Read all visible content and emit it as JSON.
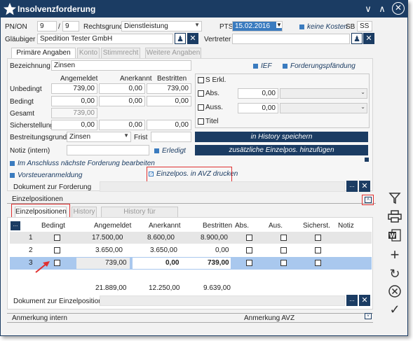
{
  "window": {
    "title": "Insolvenzforderung"
  },
  "header": {
    "pnon_label": "PN/ON",
    "pn_value": "9",
    "slash": "/",
    "on_value": "9",
    "rechtsgrund_label": "Rechtsgrund",
    "rechtsgrund_value": "Dienstleistung",
    "pts_label": "PTS",
    "pts_value": "15.02.2016",
    "keine_kosten": "keine Kosten",
    "sb_label": "SB",
    "sb_value": "SS",
    "glaeubiger_label": "Gläubiger",
    "glaeubiger_value": "Spedition Tester GmbH",
    "vertreter_label": "Vertreter",
    "vertreter_value": ""
  },
  "tabs": [
    "Primäre Angaben",
    "Konto",
    "Stimmrecht",
    "Weitere Angaben"
  ],
  "form": {
    "bezeichnung_label": "Bezeichnung",
    "bezeichnung_value": "Zinsen",
    "ief": "IEF",
    "forderungspfaendung": "Forderungspfändung",
    "col_angemeldet": "Angemeldet",
    "col_anerkannt": "Anerkannt",
    "col_bestritten": "Bestritten",
    "rows": [
      {
        "label": "Unbedingt",
        "angemeldet": "739,00",
        "anerkannt": "0,00",
        "bestritten": "739,00"
      },
      {
        "label": "Bedingt",
        "angemeldet": "0,00",
        "anerkannt": "0,00",
        "bestritten": "0,00"
      },
      {
        "label": "Gesamt",
        "angemeldet": "739,00",
        "anerkannt": "",
        "bestritten": ""
      },
      {
        "label": "Sicherstellung",
        "angemeldet": "0,00",
        "anerkannt": "0,00",
        "bestritten": "0,00"
      }
    ],
    "s_erkl": "S Erkl.",
    "abs": "Abs.",
    "abs_value": "0,00",
    "auss": "Auss.",
    "auss_value": "0,00",
    "titel": "Titel",
    "bestreitungsgrund_label": "Bestreitungsgrund",
    "bestreitungsgrund_value": "Zinsen",
    "frist_label": "Frist",
    "history_btn": "in History speichern",
    "notiz_label": "Notiz (intern)",
    "erledigt": "Erledigt",
    "zusaetzlich_btn": "zusätzliche Einzelpos. hinzufügen",
    "im_anschluss": "Im Anschluss nächste Forderung bearbeiten",
    "vorsteuer": "Vorsteueranmeldung",
    "einzelpos_avz": "Einzelpos. in AVZ drucken",
    "dokument_label": "Dokument zur Forderung"
  },
  "einzel": {
    "section_title": "Einzelpositionen",
    "tabs": [
      "Einzelpositionen",
      "History",
      "History für Einzelposition"
    ],
    "headers": [
      "Bedingt",
      "Angemeldet",
      "Anerkannt",
      "Bestritten",
      "Abs.",
      "Aus.",
      "Sicherst.",
      "Notiz"
    ],
    "rows": [
      {
        "nr": "1",
        "angemeldet": "17.500,00",
        "anerkannt": "8.600,00",
        "bestritten": "8.900,00"
      },
      {
        "nr": "2",
        "angemeldet": "3.650,00",
        "anerkannt": "3.650,00",
        "bestritten": "0,00"
      },
      {
        "nr": "3",
        "angemeldet": "739,00",
        "anerkannt": "0,00",
        "bestritten": "739,00"
      }
    ],
    "totals": {
      "angemeldet": "21.889,00",
      "anerkannt": "12.250,00",
      "bestritten": "9.639,00"
    },
    "dokument_label": "Dokument zur Einzelposition",
    "dots": "..."
  },
  "footer": {
    "anmerkung_intern": "Anmerkung intern",
    "anmerkung_avz": "Anmerkung AVZ"
  },
  "colors": {
    "navy": "#1b3c63",
    "accent": "#3a7bbf",
    "highlight": "#a9c8ee",
    "red": "#e03030"
  }
}
